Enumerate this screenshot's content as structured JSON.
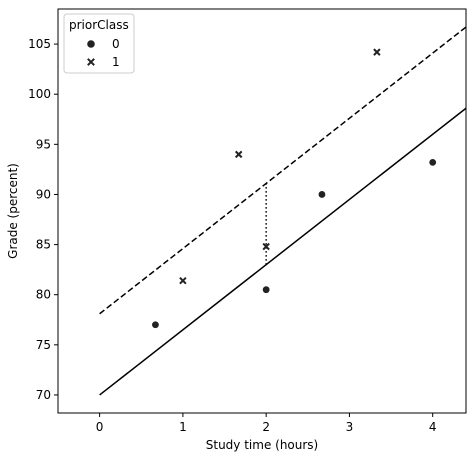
{
  "chart_data": {
    "type": "scatter",
    "title": "",
    "xlabel": "Study time (hours)",
    "ylabel": "Grade (percent)",
    "xlim": [
      -0.5,
      4.4
    ],
    "ylim": [
      68.2,
      108.5
    ],
    "xticks": [
      0,
      1,
      2,
      3,
      4
    ],
    "yticks": [
      70,
      75,
      80,
      85,
      90,
      95,
      100,
      105
    ],
    "grid": false,
    "legend": {
      "title": "priorClass",
      "placement": "top-left",
      "entries": [
        {
          "label": "0",
          "marker": "circle"
        },
        {
          "label": "1",
          "marker": "x"
        }
      ]
    },
    "series": [
      {
        "name": "0",
        "marker": "circle",
        "color": "#000000",
        "points": [
          {
            "x": 0.67,
            "y": 77.0
          },
          {
            "x": 2.0,
            "y": 80.5
          },
          {
            "x": 2.67,
            "y": 90.0
          },
          {
            "x": 4.0,
            "y": 93.2
          }
        ]
      },
      {
        "name": "1",
        "marker": "x",
        "color": "#000000",
        "points": [
          {
            "x": 1.0,
            "y": 81.4
          },
          {
            "x": 1.67,
            "y": 94.0
          },
          {
            "x": 2.0,
            "y": 84.8
          },
          {
            "x": 3.33,
            "y": 104.2
          }
        ]
      }
    ],
    "lines": [
      {
        "style": "solid",
        "x": [
          0,
          4.4
        ],
        "y": [
          70.0,
          98.6
        ]
      },
      {
        "style": "dashed",
        "x": [
          0,
          4.4
        ],
        "y": [
          78.1,
          106.7
        ]
      },
      {
        "style": "dotted",
        "x": [
          2.0,
          2.0
        ],
        "y": [
          83.0,
          91.1
        ]
      }
    ]
  }
}
